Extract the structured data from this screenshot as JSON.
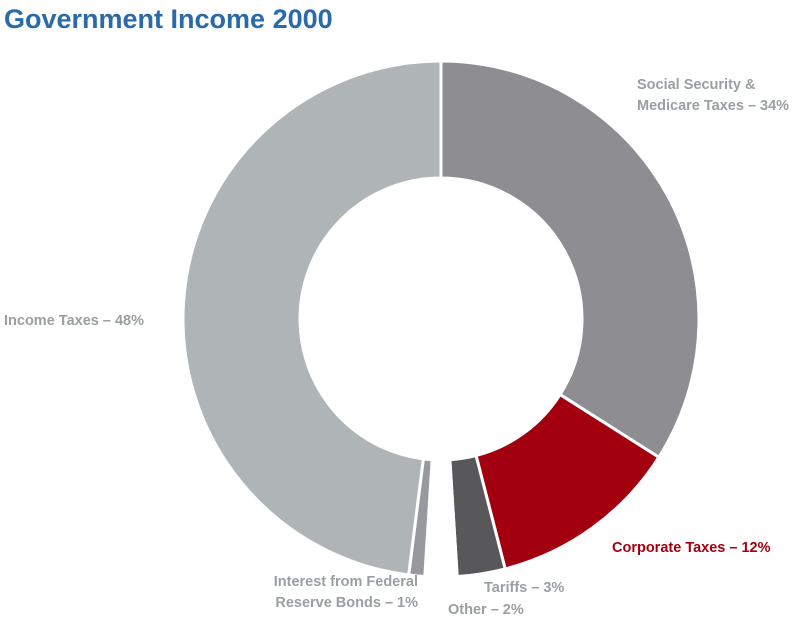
{
  "chart_data": {
    "type": "pie",
    "donut": true,
    "title": "Government Income 2000",
    "slices": [
      {
        "name": "Social Security & Medicare Taxes",
        "value": 34,
        "color": "#8e8e92",
        "label": [
          "Social Security &",
          "Medicare Taxes – 34%"
        ],
        "label_color": "#9a9fa2"
      },
      {
        "name": "Corporate Taxes",
        "value": 12,
        "color": "#a3000f",
        "label": [
          "Corporate Taxes – 12%"
        ],
        "label_color": "#a3000f"
      },
      {
        "name": "Tariffs",
        "value": 3,
        "color": "#58585a",
        "label": [
          "Tariffs – 3%"
        ],
        "label_color": "#9a9fa2"
      },
      {
        "name": "Other",
        "value": 2,
        "color": "#ffffff",
        "label": [
          "Other – 2%"
        ],
        "label_color": "#9a9fa2"
      },
      {
        "name": "Interest from Federal Reserve Bonds",
        "value": 1,
        "color": "#97999c",
        "label": [
          "Interest from Federal",
          "Reserve Bonds – 1%"
        ],
        "label_color": "#9a9fa2"
      },
      {
        "name": "Income Taxes",
        "value": 48,
        "color": "#afb5b6",
        "label": [
          "Income Taxes – 48%"
        ],
        "label_color": "#9a9fa2"
      }
    ],
    "start_angle": "12 o'clock",
    "direction": "clockwise",
    "legend": "none"
  }
}
